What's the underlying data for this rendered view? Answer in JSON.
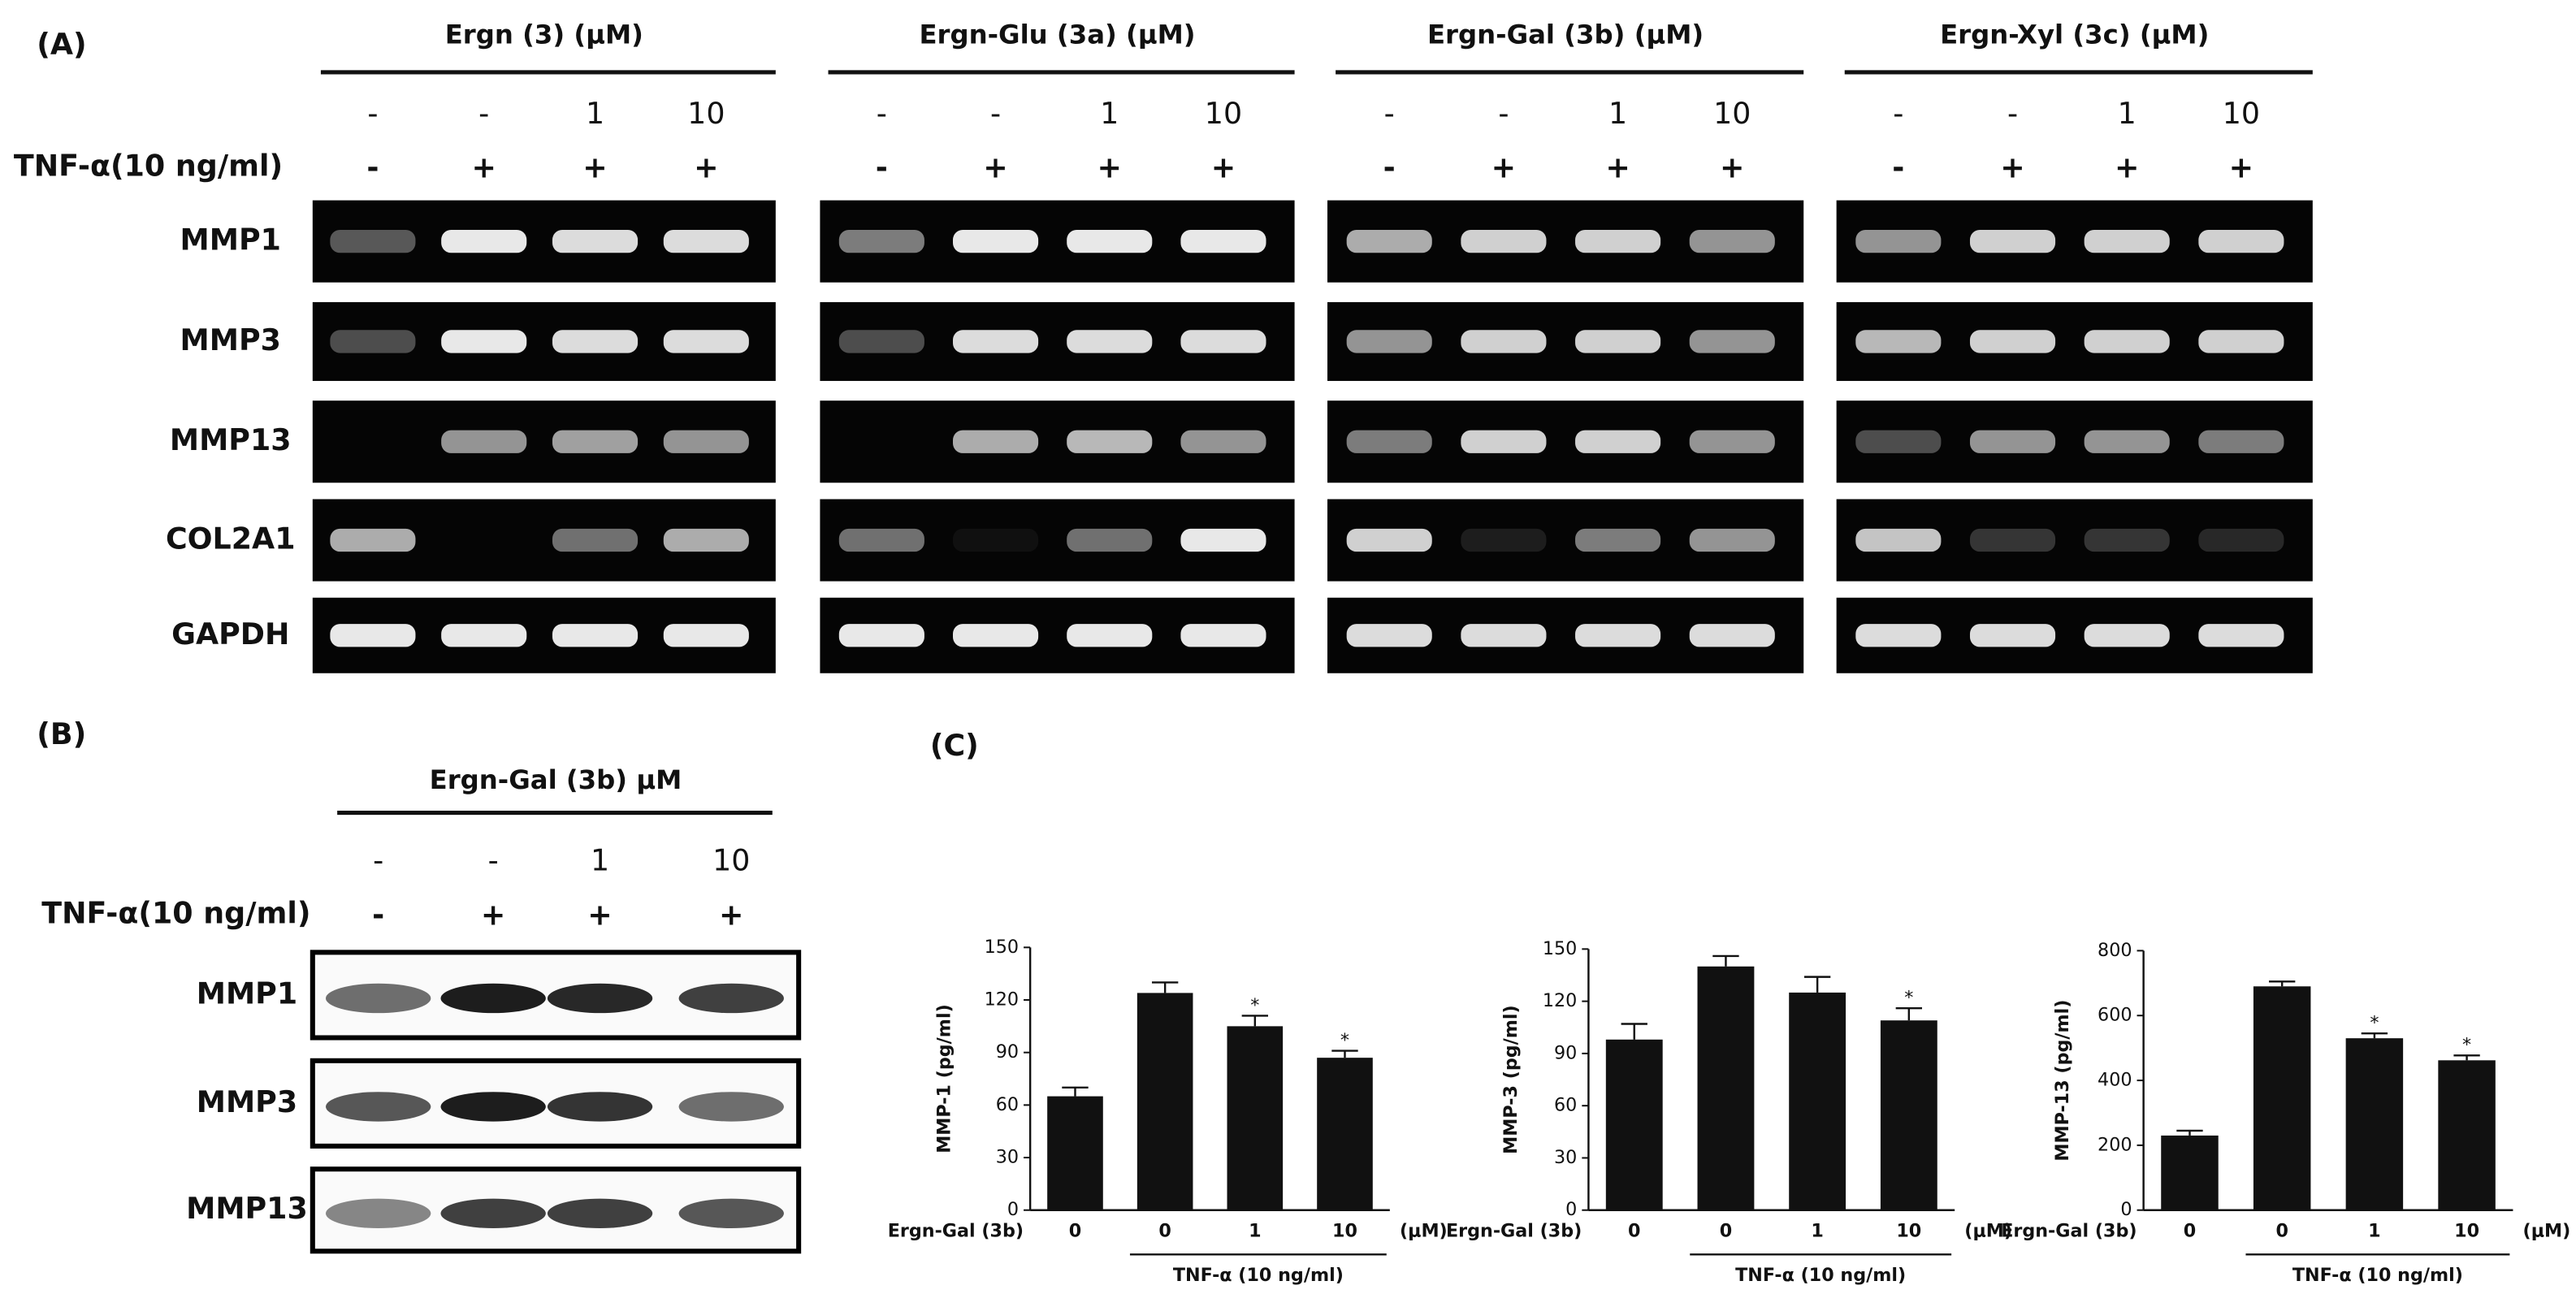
{
  "panel_a": {
    "label": "(A)",
    "tnf_label": "TNF-α(10 ng/ml)",
    "genes": [
      "MMP1",
      "MMP3",
      "MMP13",
      "COL2A1",
      "GAPDH"
    ],
    "groups": [
      {
        "title": "Ergn (3) (μM)",
        "doses": [
          "-",
          "-",
          "1",
          "10"
        ],
        "tnf": [
          "-",
          "+",
          "+",
          "+"
        ]
      },
      {
        "title": "Ergn-Glu (3a) (μM)",
        "doses": [
          "-",
          "-",
          "1",
          "10"
        ],
        "tnf": [
          "-",
          "+",
          "+",
          "+"
        ]
      },
      {
        "title": "Ergn-Gal (3b) (μM)",
        "doses": [
          "-",
          "-",
          "1",
          "10"
        ],
        "tnf": [
          "-",
          "+",
          "+",
          "+"
        ]
      },
      {
        "title": "Ergn-Xyl (3c) (μM)",
        "doses": [
          "-",
          "-",
          "1",
          "10"
        ],
        "tnf": [
          "-",
          "+",
          "+",
          "+"
        ]
      }
    ]
  },
  "panel_b": {
    "label": "(B)",
    "title": "Ergn-Gal (3b) μM",
    "doses": [
      "-",
      "-",
      "1",
      "10"
    ],
    "tnf": [
      "-",
      "+",
      "+",
      "+"
    ],
    "tnf_label": "TNF-α(10 ng/ml)",
    "proteins": [
      "MMP1",
      "MMP3",
      "MMP13"
    ]
  },
  "panel_c": {
    "label": "(C)"
  },
  "chart_data": [
    {
      "type": "bar",
      "y_label": "MMP-1 (pg/ml)",
      "row_label": "Ergn-Gal (3b)",
      "unit": "(μM)",
      "group_label": "TNF-α (10 ng/ml)",
      "categories": [
        "0",
        "0",
        "1",
        "10"
      ],
      "values": [
        65,
        124,
        105,
        87
      ],
      "errors": [
        5,
        6,
        6,
        4
      ],
      "significance": [
        null,
        null,
        "*",
        "*"
      ],
      "color": "#111111",
      "ylim": [
        0,
        150
      ],
      "yticks": [
        0,
        30,
        60,
        90,
        120,
        150
      ]
    },
    {
      "type": "bar",
      "y_label": "MMP-3 (pg/ml)",
      "row_label": "Ergn-Gal (3b)",
      "unit": "(μM)",
      "group_label": "TNF-α (10 ng/ml)",
      "categories": [
        "0",
        "0",
        "1",
        "10"
      ],
      "values": [
        98,
        140,
        125,
        109
      ],
      "errors": [
        9,
        6,
        9,
        7
      ],
      "significance": [
        null,
        null,
        null,
        "*"
      ],
      "color": "#111111",
      "ylim": [
        0,
        150
      ],
      "yticks": [
        0,
        30,
        60,
        90,
        120,
        150
      ]
    },
    {
      "type": "bar",
      "y_label": "MMP-13 (pg/ml)",
      "row_label": "Ergn-Gal (3b)",
      "unit": "(μM)",
      "group_label": "TNF-α (10 ng/ml)",
      "categories": [
        "0",
        "0",
        "1",
        "10"
      ],
      "values": [
        230,
        690,
        530,
        462
      ],
      "errors": [
        15,
        15,
        15,
        15
      ],
      "significance": [
        null,
        null,
        "*",
        "*"
      ],
      "color": "#111111",
      "ylim": [
        0,
        800
      ],
      "yticks": [
        0,
        200,
        400,
        600,
        800
      ]
    }
  ]
}
